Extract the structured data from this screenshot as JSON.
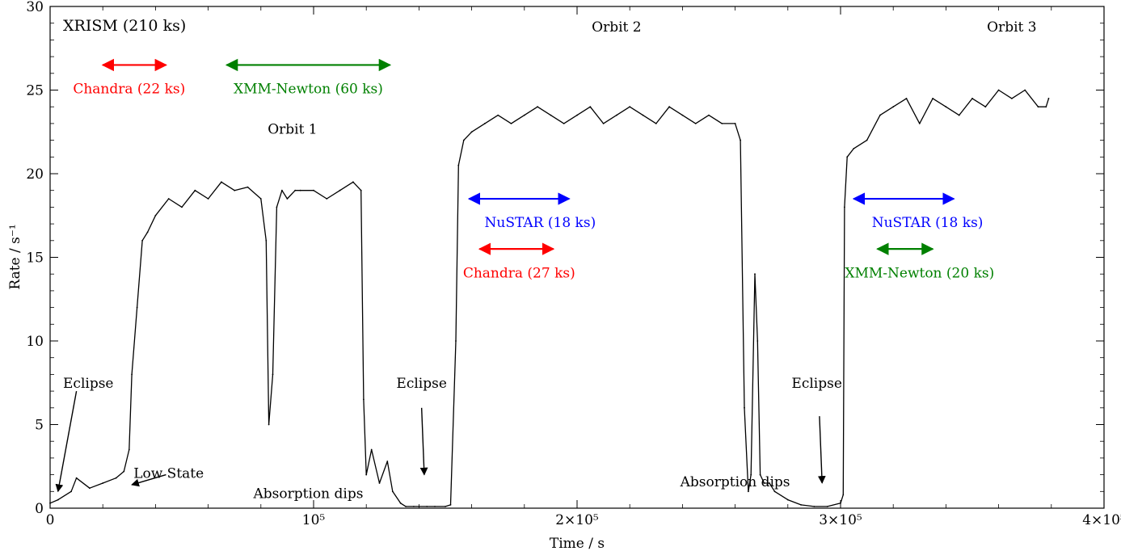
{
  "chart_data": {
    "type": "line",
    "inset_label": "XRISM (210 ks)",
    "xlabel": "Time / s",
    "ylabel": "Rate / s⁻¹",
    "xlim": [
      0,
      400000
    ],
    "ylim": [
      0,
      30
    ],
    "grid": false,
    "x_ticks": [
      {
        "value": 0,
        "label": "0"
      },
      {
        "value": 100000,
        "label": "10⁵"
      },
      {
        "value": 200000,
        "label": "2×10⁵"
      },
      {
        "value": 300000,
        "label": "3×10⁵"
      },
      {
        "value": 400000,
        "label": "4×10⁵"
      }
    ],
    "y_ticks": [
      {
        "value": 0,
        "label": "0"
      },
      {
        "value": 5,
        "label": "5"
      },
      {
        "value": 10,
        "label": "10"
      },
      {
        "value": 15,
        "label": "15"
      },
      {
        "value": 20,
        "label": "20"
      },
      {
        "value": 25,
        "label": "25"
      },
      {
        "value": 30,
        "label": "30"
      }
    ],
    "series": [
      {
        "color": "#000000",
        "x": [
          0,
          3000,
          8000,
          10000,
          15000,
          20000,
          25000,
          28000,
          30000,
          31000,
          33000,
          35000,
          37000,
          40000,
          45000,
          50000,
          55000,
          60000,
          65000,
          70000,
          75000,
          80000,
          82000,
          83000,
          84500,
          86000,
          88000,
          90000,
          93000,
          95000,
          100000,
          105000,
          110000,
          115000,
          118000,
          119000,
          120000,
          122000,
          125000,
          128000,
          130000,
          133000,
          135000,
          138000,
          140000,
          143000,
          146000,
          150000,
          152000,
          154000,
          155000,
          157000,
          160000,
          165000,
          170000,
          175000,
          180000,
          185000,
          190000,
          195000,
          200000,
          205000,
          210000,
          215000,
          220000,
          225000,
          230000,
          235000,
          240000,
          245000,
          250000,
          255000,
          260000,
          262000,
          263500,
          265000,
          266000,
          267500,
          268500,
          269500,
          271000,
          273000,
          275000,
          280000,
          285000,
          290000,
          295000,
          300000,
          301000,
          301500,
          302500,
          305000,
          310000,
          315000,
          320000,
          325000,
          330000,
          335000,
          340000,
          345000,
          350000,
          355000,
          360000,
          365000,
          370000,
          375000,
          378000,
          379000
        ],
        "y": [
          0.3,
          0.5,
          1.0,
          1.8,
          1.2,
          1.5,
          1.8,
          2.2,
          3.5,
          8.0,
          12.0,
          16.0,
          16.5,
          17.5,
          18.5,
          18.0,
          19.0,
          18.5,
          19.5,
          19.0,
          19.2,
          18.5,
          16.0,
          5.0,
          8.0,
          18.0,
          19.0,
          18.5,
          19.0,
          19.0,
          19.0,
          18.5,
          19.0,
          19.5,
          19.0,
          6.5,
          2.0,
          3.5,
          1.5,
          2.8,
          1.0,
          0.3,
          0.1,
          0.1,
          0.1,
          0.1,
          0.1,
          0.1,
          0.2,
          10.0,
          20.5,
          22.0,
          22.5,
          23.0,
          23.5,
          23.0,
          23.5,
          24.0,
          23.5,
          23.0,
          23.5,
          24.0,
          23.0,
          23.5,
          24.0,
          23.5,
          23.0,
          24.0,
          23.5,
          23.0,
          23.5,
          23.0,
          23.0,
          22.0,
          6.0,
          1.0,
          2.0,
          14.0,
          10.0,
          2.0,
          1.5,
          1.5,
          1.0,
          0.5,
          0.2,
          0.1,
          0.1,
          0.3,
          0.8,
          18.0,
          21.0,
          21.5,
          22.0,
          23.5,
          24.0,
          24.5,
          23.0,
          24.5,
          24.0,
          23.5,
          24.5,
          24.0,
          25.0,
          24.5,
          25.0,
          24.0,
          24.0,
          24.5
        ]
      }
    ],
    "annotations": [
      {
        "text": "Orbit 1",
        "x": 92000,
        "y": 22.4,
        "color": "#000000"
      },
      {
        "text": "Orbit 2",
        "x": 215000,
        "y": 28.5,
        "color": "#000000"
      },
      {
        "text": "Orbit 3",
        "x": 365000,
        "y": 28.5,
        "color": "#000000"
      },
      {
        "text": "Eclipse",
        "x": 14500,
        "y": 7.2,
        "color": "#000000"
      },
      {
        "text": "Eclipse",
        "x": 141000,
        "y": 7.2,
        "color": "#000000"
      },
      {
        "text": "Eclipse",
        "x": 291000,
        "y": 7.2,
        "color": "#000000"
      },
      {
        "text": "Low State",
        "x": 45000,
        "y": 1.8,
        "color": "#000000"
      },
      {
        "text": "Absorption dips",
        "x": 98000,
        "y": 0.6,
        "color": "#000000"
      },
      {
        "text": "Absorption dips",
        "x": 260000,
        "y": 1.3,
        "color": "#000000"
      },
      {
        "text": "Chandra (22 ks)",
        "x": 30000,
        "y": 24.8,
        "color": "#ff0000"
      },
      {
        "text": "XMM-Newton (60 ks)",
        "x": 98000,
        "y": 24.8,
        "color": "#008000"
      },
      {
        "text": "NuSTAR (18 ks)",
        "x": 186000,
        "y": 16.8,
        "color": "#0000ff"
      },
      {
        "text": "Chandra (27 ks)",
        "x": 178000,
        "y": 13.8,
        "color": "#ff0000"
      },
      {
        "text": "NuSTAR (18 ks)",
        "x": 333000,
        "y": 16.8,
        "color": "#0000ff"
      },
      {
        "text": "XMM-Newton (20 ks)",
        "x": 330000,
        "y": 13.8,
        "color": "#008000"
      }
    ],
    "arrows": [
      {
        "kind": "double",
        "x0": 20000,
        "x1": 44000,
        "y": 26.5,
        "color": "#ff0000"
      },
      {
        "kind": "double",
        "x0": 67000,
        "x1": 129000,
        "y": 26.5,
        "color": "#008000"
      },
      {
        "kind": "double",
        "x0": 159000,
        "x1": 197000,
        "y": 18.5,
        "color": "#0000ff"
      },
      {
        "kind": "double",
        "x0": 163000,
        "x1": 191000,
        "y": 15.5,
        "color": "#ff0000"
      },
      {
        "kind": "double",
        "x0": 305000,
        "x1": 343000,
        "y": 18.5,
        "color": "#0000ff"
      },
      {
        "kind": "double",
        "x0": 314000,
        "x1": 335000,
        "y": 15.5,
        "color": "#008000"
      },
      {
        "kind": "single",
        "x0": 10000,
        "y0": 7.0,
        "x1": 3000,
        "y1": 1.0,
        "color": "#000000"
      },
      {
        "kind": "single",
        "x0": 141000,
        "y0": 6.0,
        "x1": 142000,
        "y1": 2.0,
        "color": "#000000"
      },
      {
        "kind": "single",
        "x0": 292000,
        "y0": 5.5,
        "x1": 293000,
        "y1": 1.5,
        "color": "#000000"
      },
      {
        "kind": "single",
        "x0": 44000,
        "y0": 2.0,
        "x1": 31000,
        "y1": 1.4,
        "color": "#000000"
      }
    ]
  }
}
